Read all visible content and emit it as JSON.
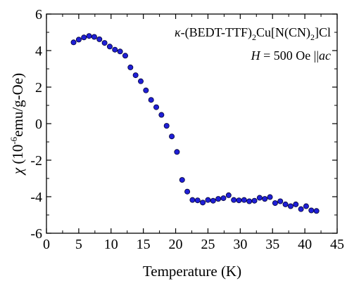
{
  "chart_data": {
    "type": "scatter",
    "xlabel": "Temperature (K)",
    "ylabel": {
      "symbol": "χ",
      "open": "(10",
      "exponent": "-6",
      "rest": "emu/g-Oe)"
    },
    "xlim": [
      0,
      45
    ],
    "ylim": [
      -6,
      6
    ],
    "xticks": [
      "0",
      "5",
      "10",
      "15",
      "20",
      "25",
      "30",
      "35",
      "40",
      "45"
    ],
    "yticks": [
      "-6",
      "-4",
      "-2",
      "0",
      "2",
      "4",
      "6"
    ],
    "grid": false,
    "legend": "none",
    "marker_color": "#1f1fd6",
    "marker_edge": "#000033",
    "annotations": {
      "line1": {
        "kappa": "κ",
        "p1": "-(BEDT-TTF)",
        "s1": "2",
        "p2": "Cu[N(CN)",
        "s2": "2",
        "p3": "]Cl"
      },
      "line2": {
        "h": "H",
        "eq": " = 500 Oe ||",
        "ac": "ac"
      }
    },
    "series": [
      {
        "x": [
          4.2,
          5.0,
          5.8,
          6.6,
          7.4,
          8.2,
          9.0,
          9.8,
          10.6,
          11.4,
          12.2,
          13.0,
          13.8,
          14.6,
          15.4,
          16.2,
          17.0,
          17.8,
          18.6,
          19.4,
          20.2,
          21.0,
          21.8,
          22.6,
          23.4,
          24.2,
          25.0,
          25.8,
          26.6,
          27.4,
          28.2,
          29.0,
          29.8,
          30.6,
          31.4,
          32.2,
          33.0,
          33.8,
          34.6,
          35.4,
          36.2,
          37.0,
          37.8,
          38.6,
          39.4,
          40.2,
          41.0,
          41.8
        ],
        "y": [
          4.45,
          4.6,
          4.72,
          4.8,
          4.75,
          4.62,
          4.42,
          4.22,
          4.05,
          3.95,
          3.72,
          3.08,
          2.65,
          2.32,
          1.82,
          1.3,
          0.9,
          0.48,
          -0.12,
          -0.7,
          -1.55,
          -3.08,
          -3.72,
          -4.18,
          -4.2,
          -4.32,
          -4.18,
          -4.22,
          -4.12,
          -4.08,
          -3.92,
          -4.18,
          -4.2,
          -4.18,
          -4.25,
          -4.22,
          -4.06,
          -4.12,
          -4.02,
          -4.35,
          -4.25,
          -4.42,
          -4.52,
          -4.42,
          -4.68,
          -4.52,
          -4.75,
          -4.78
        ]
      }
    ]
  }
}
